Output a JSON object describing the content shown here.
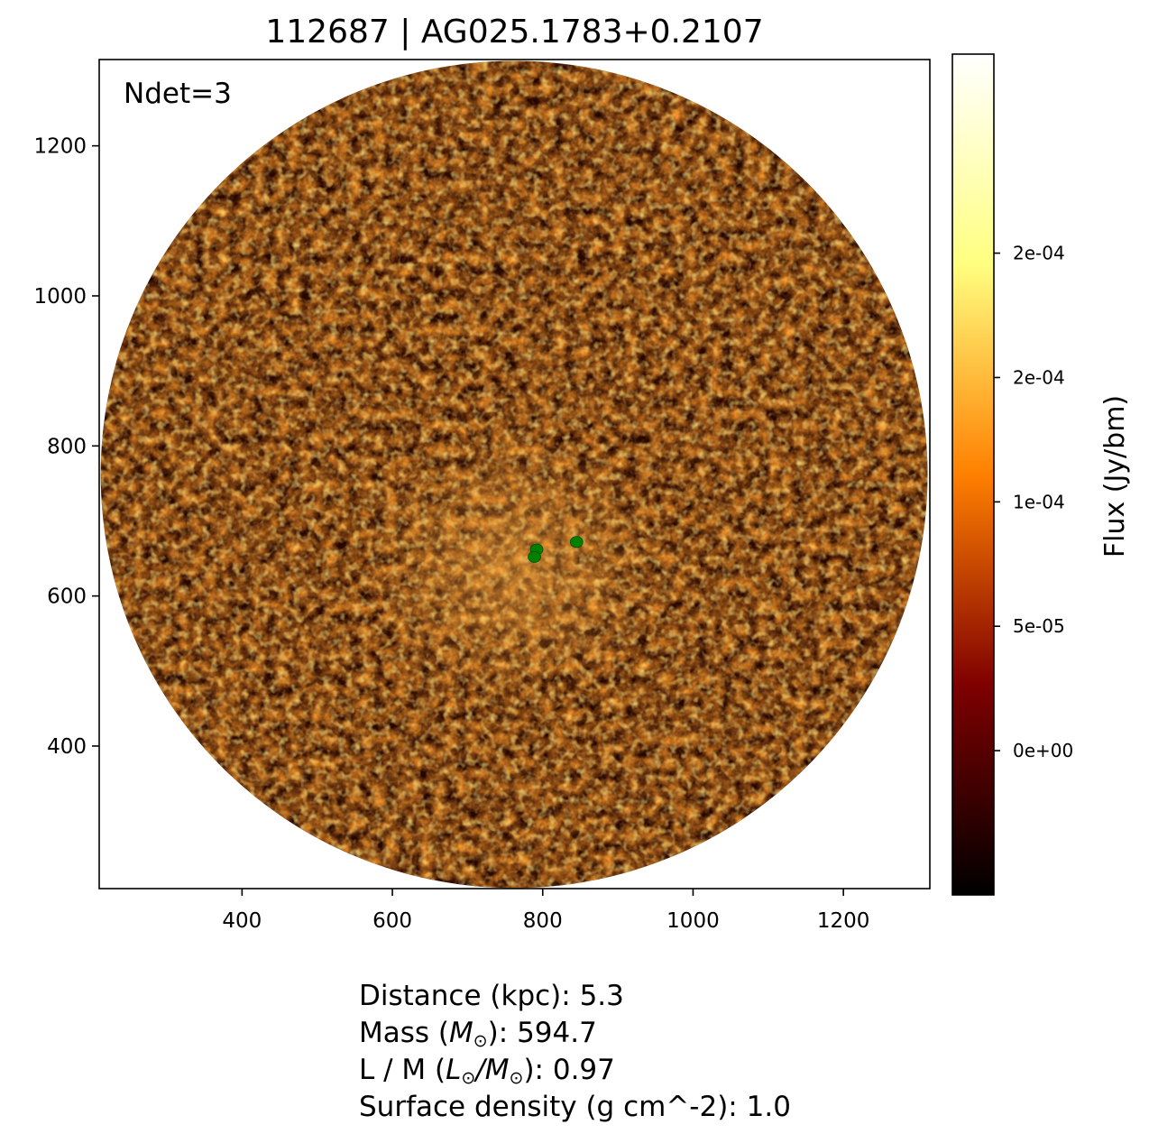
{
  "chart_data": {
    "type": "heatmap",
    "title": "112687 | AG025.1783+0.2107",
    "xlim": [
      210,
      1315
    ],
    "ylim": [
      210,
      1315
    ],
    "xticks": [
      400,
      600,
      800,
      1000,
      1200
    ],
    "yticks": [
      400,
      600,
      800,
      1000,
      1200
    ],
    "xtick_labels": [
      "400",
      "600",
      "800",
      "1000",
      "1200"
    ],
    "ytick_labels": [
      "400",
      "600",
      "800",
      "1000",
      "1200"
    ],
    "grid": false,
    "colormap": "afmhot",
    "footprint": {
      "shape": "circle",
      "center": [
        762,
        762
      ],
      "radius": 550
    },
    "annotation": "Ndet=3",
    "detections": [
      {
        "x": 792,
        "y": 662
      },
      {
        "x": 789,
        "y": 652
      },
      {
        "x": 845,
        "y": 672
      }
    ],
    "detection_color": "#008000",
    "colorbar": {
      "label": "Flux (Jy/bm)",
      "vmin": -5.8e-05,
      "vmax": 0.00028,
      "ticks": [
        0.0,
        5e-05,
        0.0001,
        0.00015,
        0.0002
      ],
      "tick_labels": [
        "0e+00",
        "5e-05",
        "1e-04",
        "2e-04",
        "2e-04"
      ]
    }
  },
  "info": {
    "distance": "Distance (kpc): 5.3",
    "mass_prefix": "Mass (",
    "mass_unit": "M",
    "mass_suffix": "): 594.7",
    "lm_prefix": "L / M (",
    "lm_unit_l": "L",
    "lm_slash": "/",
    "lm_unit_m": "M",
    "lm_suffix": "): 0.97",
    "surface_density": "Surface density (g cm^-2): 1.0",
    "sun_symbol": "⊙"
  }
}
